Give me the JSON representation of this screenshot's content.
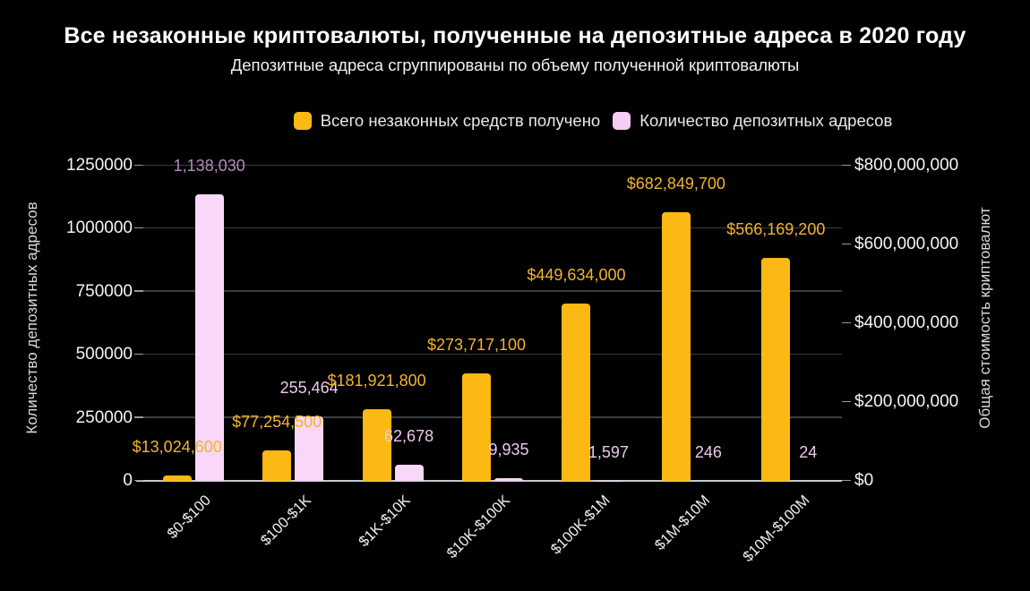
{
  "title": "Все незаконные криптовалюты, полученные на депозитные адреса в 2020 году",
  "subtitle": "Депозитные адреса сгруппированы по объему полученной криптовалюты",
  "legend": [
    {
      "label": "Всего незаконных средств получено",
      "color": "#fcb813"
    },
    {
      "label": "Количество депозитных адресов",
      "color": "#f6cdf4"
    }
  ],
  "left_axis": {
    "title": "Количество депозитных адресов",
    "tick_labels": [
      "0",
      "250000",
      "500000",
      "750000",
      "1000000",
      "1250000"
    ],
    "range": [
      0,
      1250000
    ]
  },
  "right_axis": {
    "title": "Общая стоимость криптовалют",
    "tick_labels": [
      "$0",
      "$200,000,000",
      "$400,000,000",
      "$600,000,000",
      "$800,000,000"
    ],
    "range": [
      0,
      800000000
    ]
  },
  "chart_data": {
    "type": "bar",
    "categories": [
      "$0-$100",
      "$100-$1K",
      "$1K-$10K",
      "$10K-$100K",
      "$100K-$1M",
      "$1M-$10M",
      "$10M-$100M"
    ],
    "series": [
      {
        "name": "Всего незаконных средств получено",
        "axis": "right",
        "color": "#fcb813",
        "label_color": "#f2b42c",
        "values": [
          13024600,
          77254500,
          181921800,
          273717100,
          449634000,
          682849700,
          566169200
        ],
        "labels": [
          "$13,024,600",
          "$77,254,500",
          "$181,921,800",
          "$273,717,100",
          "$449,634,000",
          "$682,849,700",
          "$566,169,200"
        ]
      },
      {
        "name": "Количество депозитных адресов",
        "axis": "left",
        "color": "#f8d7f8",
        "label_colors": [
          "#b58cc0",
          "#edc7ee",
          "#edc7ee",
          "#edc7ee",
          "#edc7ee",
          "#edc7ee",
          "#edc7ee"
        ],
        "values": [
          1138030,
          255464,
          62678,
          9935,
          1597,
          246,
          24
        ],
        "labels": [
          "1,138,030",
          "255,464",
          "62,678",
          "9,935",
          "1,597",
          "246",
          "24"
        ]
      }
    ],
    "left_ylim": [
      0,
      1250000
    ],
    "right_ylim": [
      0,
      800000000
    ],
    "grid": true,
    "legend_position": "top",
    "title": "Все незаконные криптовалюты, полученные на депозитные адреса в 2020 году",
    "ylabel_left": "Количество депозитных адресов",
    "ylabel_right": "Общая стоимость криптовалют"
  },
  "colors": {
    "background": "#000000",
    "gridline": "#3d3d42",
    "baseline": "#c7cad1",
    "tick_mark": "#97979d",
    "tick_label": "#f5f5f5",
    "axis_title": "#dadada",
    "x_label": "#f0f0f0",
    "title": "#ffffff",
    "subtitle": "#f2f2f2",
    "legend_text": "#e9e9e9"
  }
}
